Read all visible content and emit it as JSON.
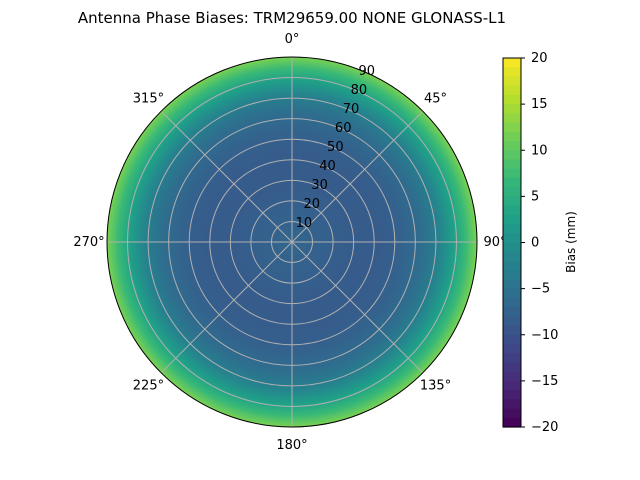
{
  "chart_data": {
    "type": "heatmap",
    "projection": "polar",
    "title": "Antenna Phase Biases: TRM29659.00     NONE GLONASS-L1",
    "angular_axis": {
      "zero_location": "top",
      "direction": "clockwise",
      "tick_labels": [
        "0°",
        "45°",
        "90°",
        "135°",
        "180°",
        "225°",
        "270°",
        "315°"
      ],
      "tick_values": [
        0,
        45,
        90,
        135,
        180,
        225,
        270,
        315
      ]
    },
    "radial_axis": {
      "range": [
        0,
        90
      ],
      "tick_values": [
        10,
        20,
        30,
        40,
        50,
        60,
        70,
        80,
        90
      ],
      "tick_labels": [
        "10",
        "20",
        "30",
        "40",
        "50",
        "60",
        "70",
        "80",
        "90"
      ]
    },
    "grid": true,
    "colorscale": "viridis",
    "colorbar": {
      "label": "Bias (mm)",
      "range": [
        -20,
        20
      ],
      "tick_values": [
        20,
        15,
        10,
        5,
        0,
        -5,
        -10,
        -15,
        -20
      ],
      "tick_labels": [
        "20",
        "15",
        "10",
        "5",
        "0",
        "−5",
        "−10",
        "−15",
        "−20"
      ]
    },
    "radial_profile": {
      "radius": [
        0,
        10,
        20,
        30,
        40,
        50,
        60,
        65,
        70,
        75,
        80,
        85,
        90
      ],
      "bias_mm": [
        -7,
        -7.5,
        -8,
        -8.5,
        -8.5,
        -8,
        -6.5,
        -5,
        -3,
        0,
        3.5,
        7.5,
        12
      ]
    }
  }
}
